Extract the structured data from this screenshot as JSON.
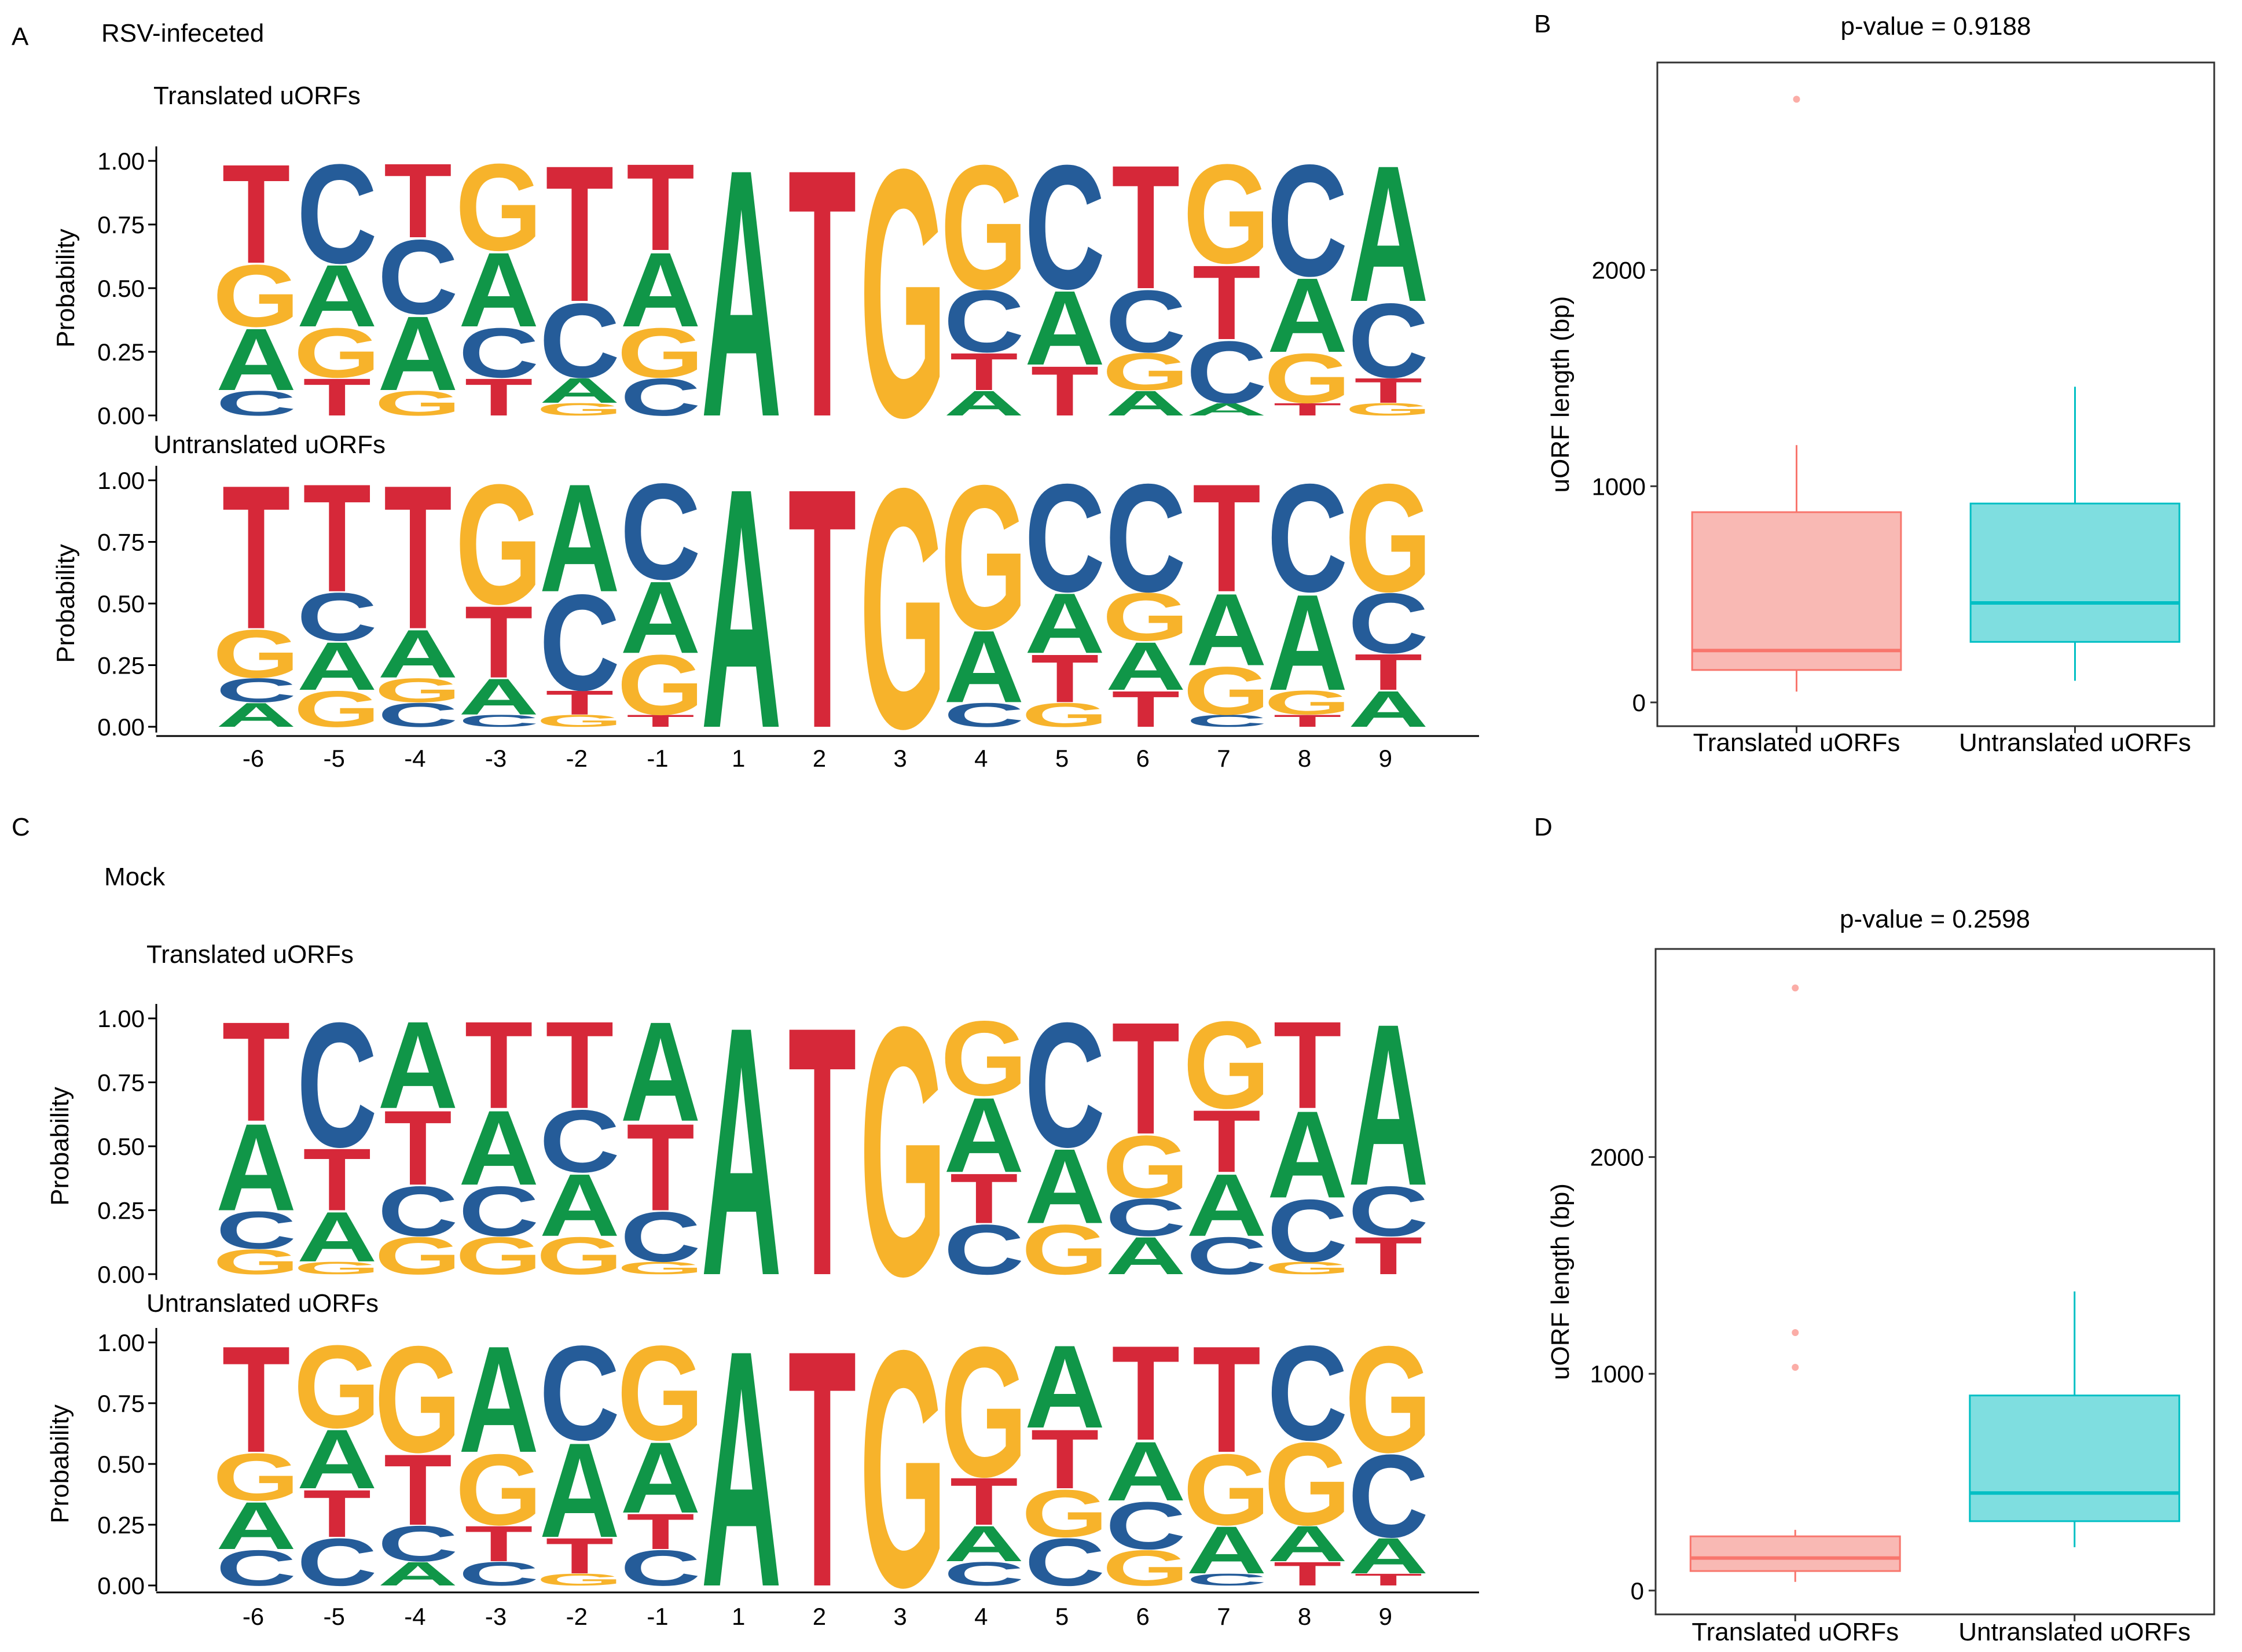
{
  "colors": {
    "A": "#109648",
    "C": "#255C99",
    "G": "#F7B32B",
    "T": "#D62839",
    "translated": "#F8766D",
    "untranslated": "#00BFC4"
  },
  "panels": {
    "A": {
      "letter": "A",
      "condition": "RSV-infeceted"
    },
    "B": {
      "letter": "B"
    },
    "C": {
      "letter": "C",
      "condition": "Mock"
    },
    "D": {
      "letter": "D"
    }
  },
  "chart_data": [
    {
      "id": "A_translated",
      "type": "sequence-logo",
      "title": "Translated uORFs",
      "ylabel": "Probability",
      "yticks": [
        "0.00",
        "0.25",
        "0.50",
        "0.75",
        "1.00"
      ],
      "ylim": [
        0,
        1
      ],
      "positions": [
        "-6",
        "-5",
        "-4",
        "-3",
        "-2",
        "-1",
        "1",
        "2",
        "3",
        "4",
        "5",
        "6",
        "7",
        "8",
        "9"
      ],
      "probabilities": [
        {
          "A": 0.25,
          "C": 0.1,
          "G": 0.25,
          "T": 0.4
        },
        {
          "A": 0.25,
          "C": 0.4,
          "G": 0.2,
          "T": 0.15
        },
        {
          "A": 0.3,
          "C": 0.3,
          "G": 0.1,
          "T": 0.3
        },
        {
          "A": 0.3,
          "C": 0.2,
          "G": 0.35,
          "T": 0.15
        },
        {
          "A": 0.1,
          "C": 0.3,
          "G": 0.05,
          "T": 0.55
        },
        {
          "A": 0.3,
          "C": 0.15,
          "G": 0.2,
          "T": 0.35
        },
        {
          "A": 1.0,
          "C": 0,
          "G": 0,
          "T": 0
        },
        {
          "A": 0,
          "C": 0,
          "G": 0,
          "T": 1.0
        },
        {
          "A": 0,
          "C": 0,
          "G": 1.0,
          "T": 0
        },
        {
          "A": 0.1,
          "C": 0.25,
          "G": 0.5,
          "T": 0.15
        },
        {
          "A": 0.3,
          "C": 0.5,
          "G": 0,
          "T": 0.2
        },
        {
          "A": 0.1,
          "C": 0.25,
          "G": 0.15,
          "T": 0.5
        },
        {
          "A": 0.05,
          "C": 0.25,
          "G": 0.4,
          "T": 0.3
        },
        {
          "A": 0.3,
          "C": 0.45,
          "G": 0.2,
          "T": 0.05
        },
        {
          "A": 0.55,
          "C": 0.3,
          "G": 0.05,
          "T": 0.1
        }
      ]
    },
    {
      "id": "A_untranslated",
      "type": "sequence-logo",
      "title": "Untranslated uORFs",
      "ylabel": "Probability",
      "yticks": [
        "0.00",
        "0.25",
        "0.50",
        "0.75",
        "1.00"
      ],
      "ylim": [
        0,
        1
      ],
      "positions": [
        "-6",
        "-5",
        "-4",
        "-3",
        "-2",
        "-1",
        "1",
        "2",
        "3",
        "4",
        "5",
        "6",
        "7",
        "8",
        "9"
      ],
      "probabilities": [
        {
          "A": 0.1,
          "C": 0.1,
          "G": 0.2,
          "T": 0.6
        },
        {
          "A": 0.2,
          "C": 0.2,
          "G": 0.15,
          "T": 0.45
        },
        {
          "A": 0.2,
          "C": 0.1,
          "G": 0.1,
          "T": 0.6
        },
        {
          "A": 0.15,
          "C": 0.05,
          "G": 0.5,
          "T": 0.3
        },
        {
          "A": 0.45,
          "C": 0.4,
          "G": 0.05,
          "T": 0.1
        },
        {
          "A": 0.3,
          "C": 0.4,
          "G": 0.25,
          "T": 0.05
        },
        {
          "A": 1.0,
          "C": 0,
          "G": 0,
          "T": 0
        },
        {
          "A": 0,
          "C": 0,
          "G": 0,
          "T": 1.0
        },
        {
          "A": 0,
          "C": 0,
          "G": 1.0,
          "T": 0
        },
        {
          "A": 0.3,
          "C": 0.1,
          "G": 0.6,
          "T": 0
        },
        {
          "A": 0.25,
          "C": 0.45,
          "G": 0.1,
          "T": 0.2
        },
        {
          "A": 0.2,
          "C": 0.45,
          "G": 0.2,
          "T": 0.15
        },
        {
          "A": 0.3,
          "C": 0.05,
          "G": 0.2,
          "T": 0.45
        },
        {
          "A": 0.4,
          "C": 0.45,
          "G": 0.1,
          "T": 0.05
        },
        {
          "A": 0.15,
          "C": 0.25,
          "G": 0.45,
          "T": 0.15
        }
      ]
    },
    {
      "id": "B",
      "type": "box",
      "title": "p-value = 0.9188",
      "ylabel": "uORF length (bp)",
      "yticks": [
        0,
        1000,
        2000
      ],
      "ylim": [
        -110,
        2960
      ],
      "categories": [
        "Translated uORFs",
        "Untranslated uORFs"
      ],
      "boxes": [
        {
          "whisker_low": 50,
          "q1": 150,
          "median": 240,
          "q3": 880,
          "whisker_high": 1190,
          "outliers": [
            2790
          ]
        },
        {
          "whisker_low": 100,
          "q1": 280,
          "median": 460,
          "q3": 920,
          "whisker_high": 1460,
          "outliers": []
        }
      ]
    },
    {
      "id": "C_translated",
      "type": "sequence-logo",
      "title": "Translated uORFs",
      "ylabel": "Probability",
      "yticks": [
        "0.00",
        "0.25",
        "0.50",
        "0.75",
        "1.00"
      ],
      "ylim": [
        0,
        1
      ],
      "positions": [
        "-6",
        "-5",
        "-4",
        "-3",
        "-2",
        "-1",
        "1",
        "2",
        "3",
        "4",
        "5",
        "6",
        "7",
        "8",
        "9"
      ],
      "probabilities": [
        {
          "A": 0.35,
          "C": 0.15,
          "G": 0.1,
          "T": 0.4
        },
        {
          "A": 0.2,
          "C": 0.5,
          "G": 0.05,
          "T": 0.25
        },
        {
          "A": 0.35,
          "C": 0.2,
          "G": 0.15,
          "T": 0.3
        },
        {
          "A": 0.3,
          "C": 0.2,
          "G": 0.15,
          "T": 0.35
        },
        {
          "A": 0.25,
          "C": 0.25,
          "G": 0.15,
          "T": 0.35
        },
        {
          "A": 0.4,
          "C": 0.2,
          "G": 0.05,
          "T": 0.35
        },
        {
          "A": 1.0,
          "C": 0,
          "G": 0,
          "T": 0
        },
        {
          "A": 0,
          "C": 0,
          "G": 0,
          "T": 1.0
        },
        {
          "A": 0,
          "C": 0,
          "G": 1.0,
          "T": 0
        },
        {
          "A": 0.3,
          "C": 0.2,
          "G": 0.3,
          "T": 0.2
        },
        {
          "A": 0.3,
          "C": 0.5,
          "G": 0.2,
          "T": 0
        },
        {
          "A": 0.15,
          "C": 0.15,
          "G": 0.25,
          "T": 0.45
        },
        {
          "A": 0.25,
          "C": 0.15,
          "G": 0.35,
          "T": 0.25
        },
        {
          "A": 0.35,
          "C": 0.25,
          "G": 0.05,
          "T": 0.35
        },
        {
          "A": 0.65,
          "C": 0.2,
          "G": 0,
          "T": 0.15
        }
      ]
    },
    {
      "id": "C_untranslated",
      "type": "sequence-logo",
      "title": "Untranslated uORFs",
      "ylabel": "Probability",
      "yticks": [
        "0.00",
        "0.25",
        "0.50",
        "0.75",
        "1.00"
      ],
      "ylim": [
        0,
        1
      ],
      "positions": [
        "-6",
        "-5",
        "-4",
        "-3",
        "-2",
        "-1",
        "1",
        "2",
        "3",
        "4",
        "5",
        "6",
        "7",
        "8",
        "9"
      ],
      "probabilities": [
        {
          "A": 0.2,
          "C": 0.15,
          "G": 0.2,
          "T": 0.45
        },
        {
          "A": 0.25,
          "C": 0.2,
          "G": 0.35,
          "T": 0.2
        },
        {
          "A": 0.1,
          "C": 0.15,
          "G": 0.45,
          "T": 0.3
        },
        {
          "A": 0.45,
          "C": 0.1,
          "G": 0.3,
          "T": 0.15
        },
        {
          "A": 0.4,
          "C": 0.4,
          "G": 0.05,
          "T": 0.15
        },
        {
          "A": 0.3,
          "C": 0.15,
          "G": 0.4,
          "T": 0.15
        },
        {
          "A": 1.0,
          "C": 0,
          "G": 0,
          "T": 0
        },
        {
          "A": 0,
          "C": 0,
          "G": 0,
          "T": 1.0
        },
        {
          "A": 0,
          "C": 0,
          "G": 1.0,
          "T": 0
        },
        {
          "A": 0.15,
          "C": 0.1,
          "G": 0.55,
          "T": 0.2
        },
        {
          "A": 0.35,
          "C": 0.2,
          "G": 0.2,
          "T": 0.25
        },
        {
          "A": 0.25,
          "C": 0.2,
          "G": 0.15,
          "T": 0.4
        },
        {
          "A": 0.2,
          "C": 0.05,
          "G": 0.3,
          "T": 0.45
        },
        {
          "A": 0.15,
          "C": 0.4,
          "G": 0.35,
          "T": 0.1
        },
        {
          "A": 0.15,
          "C": 0.35,
          "G": 0.45,
          "T": 0.05
        }
      ]
    },
    {
      "id": "D",
      "type": "box",
      "title": "p-value = 0.2598",
      "ylabel": "uORF length (bp)",
      "yticks": [
        0,
        1000,
        2000
      ],
      "ylim": [
        -110,
        2960
      ],
      "categories": [
        "Translated uORFs",
        "Untranslated uORFs"
      ],
      "boxes": [
        {
          "whisker_low": 40,
          "q1": 90,
          "median": 150,
          "q3": 250,
          "whisker_high": 280,
          "outliers": [
            1030,
            1190,
            2780
          ]
        },
        {
          "whisker_low": 200,
          "q1": 320,
          "median": 450,
          "q3": 900,
          "whisker_high": 1380,
          "outliers": []
        }
      ]
    }
  ]
}
